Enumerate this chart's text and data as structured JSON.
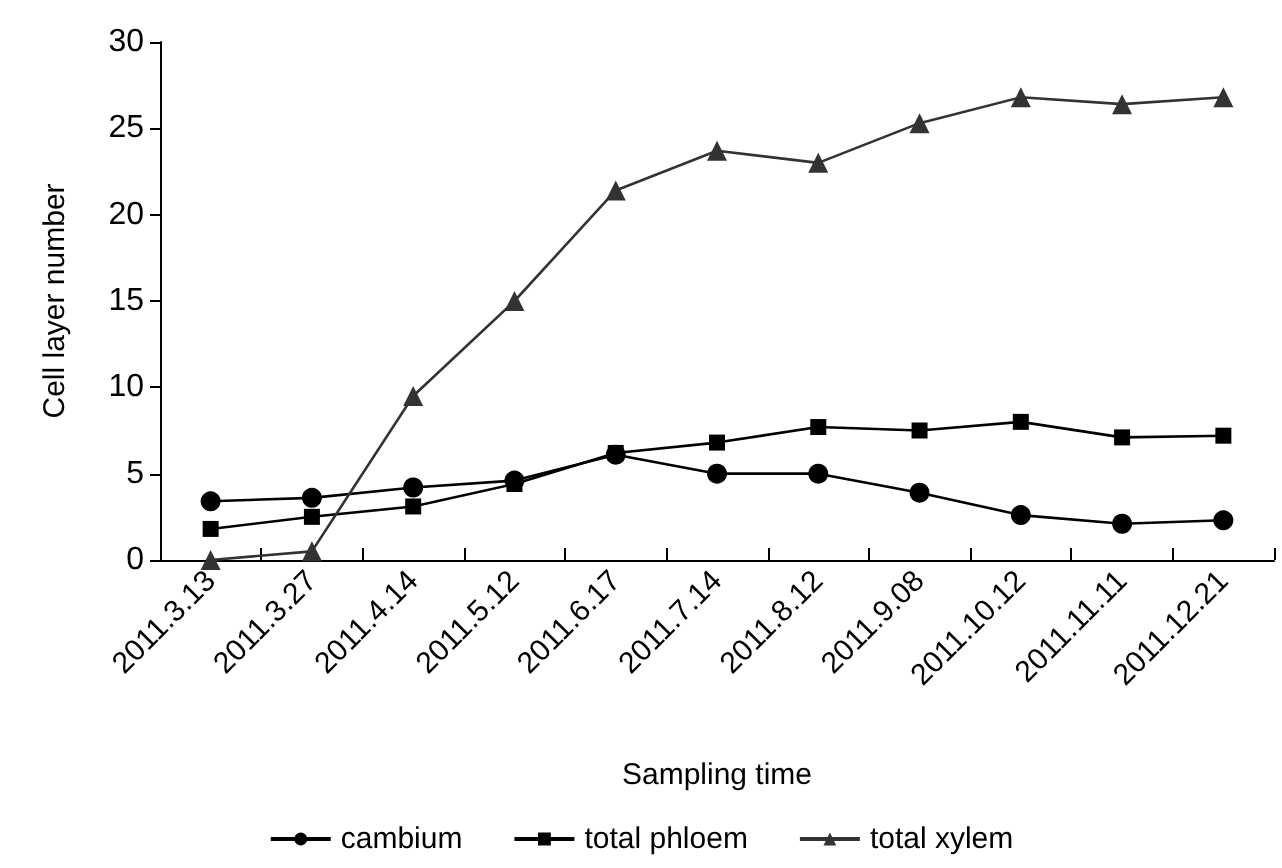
{
  "chart_data": {
    "type": "line",
    "xlabel": "Sampling time",
    "ylabel": "Cell layer number",
    "categories": [
      "2011.3.13",
      "2011.3.27",
      "2011.4.14",
      "2011.5.12",
      "2011.6.17",
      "2011.7.14",
      "2011.8.12",
      "2011.9.08",
      "2011.10.12",
      "2011.11.11",
      "2011.12.21"
    ],
    "series": [
      {
        "name": "cambium",
        "color": "#000000",
        "marker": "circle",
        "values": [
          3.4,
          3.6,
          4.2,
          4.6,
          6.1,
          5.0,
          5.0,
          3.9,
          2.6,
          2.1,
          2.3
        ]
      },
      {
        "name": "total phloem",
        "color": "#000000",
        "marker": "square",
        "values": [
          1.8,
          2.5,
          3.1,
          4.4,
          6.2,
          6.8,
          7.7,
          7.5,
          8.0,
          7.1,
          7.2
        ]
      },
      {
        "name": "total xylem",
        "color": "#333333",
        "marker": "triangle",
        "values": [
          0,
          0.5,
          9.5,
          15.0,
          21.4,
          23.7,
          23.0,
          25.3,
          26.8,
          26.4,
          26.8
        ]
      }
    ],
    "ylim": [
      0,
      30
    ],
    "yticks": [
      0,
      5,
      10,
      15,
      20,
      25,
      30
    ],
    "grid": false,
    "legend": "bottom"
  }
}
